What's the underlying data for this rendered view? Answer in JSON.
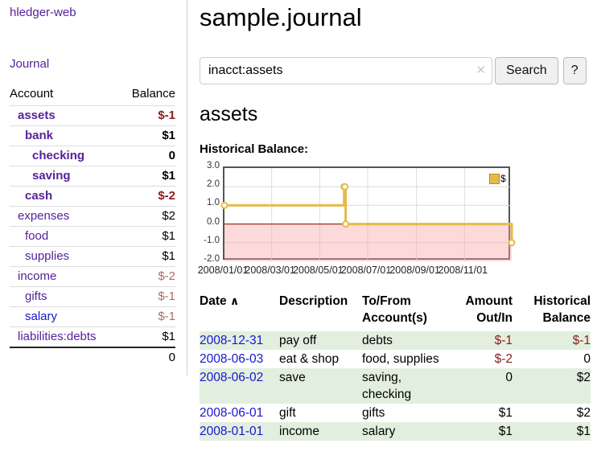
{
  "colors": {
    "purple": "#55229b",
    "link-blue": "#1717cf",
    "neg-strong": "#8c1c1c",
    "neg-muted": "#b06a6a",
    "row-green": "#e2efdf",
    "gold": "#e3bb4a",
    "gold-dark": "#b08c28",
    "grid": "#dddddd",
    "zero-line": "#8b0000",
    "neg-band": "#f7a8a8"
  },
  "app": {
    "brand": "hledger-web",
    "nav_journal": "Journal"
  },
  "sidebar": {
    "header": {
      "account": "Account",
      "balance": "Balance"
    },
    "rows": [
      {
        "name": "assets",
        "balance": "$-1",
        "name_color": "#55229b",
        "balance_color": "#8c1c1c"
      },
      {
        "name": "bank",
        "balance": "$1",
        "name_color": "#55229b",
        "balance_color": "#000000"
      },
      {
        "name": "checking",
        "balance": "0",
        "name_color": "#55229b",
        "balance_color": "#000000"
      },
      {
        "name": "saving",
        "balance": "$1",
        "name_color": "#55229b",
        "balance_color": "#000000"
      },
      {
        "name": "cash",
        "balance": "$-2",
        "name_color": "#55229b",
        "balance_color": "#8c1c1c"
      },
      {
        "name": "expenses",
        "balance": "$2",
        "name_color": "#55229b",
        "balance_color": "#000000"
      },
      {
        "name": "food",
        "balance": "$1",
        "name_color": "#55229b",
        "balance_color": "#000000"
      },
      {
        "name": "supplies",
        "balance": "$1",
        "name_color": "#55229b",
        "balance_color": "#000000"
      },
      {
        "name": "income",
        "balance": "$-2",
        "name_color": "#55229b",
        "balance_color": "#b06a6a"
      },
      {
        "name": "gifts",
        "balance": "$-1",
        "name_color": "#55229b",
        "balance_color": "#b06a6a"
      },
      {
        "name": "salary",
        "balance": "$-1",
        "name_color": "#1717cf",
        "balance_color": "#b06a6a"
      },
      {
        "name": "liabilities:debts",
        "balance": "$1",
        "name_color": "#55229b",
        "balance_color": "#000000"
      }
    ],
    "total": "0"
  },
  "header": {
    "title": "sample.journal"
  },
  "search": {
    "value": "inacct:assets",
    "clear_icon": "✕",
    "button_label": "Search",
    "help_label": "?"
  },
  "account_page": {
    "title": "assets",
    "chart_label": "Historical Balance:"
  },
  "chart_data": {
    "type": "line",
    "step": true,
    "series_name": "$",
    "x": [
      "2008-01-01",
      "2008-06-01",
      "2008-06-02",
      "2008-06-03",
      "2008-12-31"
    ],
    "values": [
      1,
      2,
      2,
      0,
      -1
    ],
    "x_range": [
      "2008-01-01",
      "2008-12-31"
    ],
    "ylim": [
      -2,
      3
    ],
    "ytick_labels": [
      "3.0",
      "2.0",
      "1.0",
      "0.0",
      "-1.0",
      "-2.0"
    ],
    "yticks": [
      3,
      2,
      1,
      0,
      -1,
      -2
    ],
    "xticks": [
      "2008-01-01",
      "2008-03-01",
      "2008-05-01",
      "2008-07-01",
      "2008-09-01",
      "2008-11-01"
    ],
    "xtick_labels": [
      "2008/01/01",
      "2008/03/01",
      "2008/05/01",
      "2008/07/01",
      "2008/09/01",
      "2008/11/01"
    ],
    "grid": true,
    "legend_position": "top-right",
    "line_color": "#e3bb4a",
    "negative_region": true
  },
  "register": {
    "columns": {
      "date": "Date",
      "sort_icon": "∧",
      "description": "Description",
      "tofrom": "To/From Account(s)",
      "amount": "Amount Out/In",
      "balance": "Historical Balance"
    },
    "rows": [
      {
        "date": "2008-12-31",
        "description": "pay off",
        "accounts": "debts",
        "amount": "$-1",
        "balance": "$-1",
        "amount_color": "#8c1c1c",
        "balance_color": "#8c1c1c"
      },
      {
        "date": "2008-06-03",
        "description": "eat & shop",
        "accounts": "food, supplies",
        "amount": "$-2",
        "balance": "0",
        "amount_color": "#8c1c1c",
        "balance_color": "#000000"
      },
      {
        "date": "2008-06-02",
        "description": "save",
        "accounts": "saving, checking",
        "amount": "0",
        "balance": "$2",
        "amount_color": "#000000",
        "balance_color": "#000000"
      },
      {
        "date": "2008-06-01",
        "description": "gift",
        "accounts": "gifts",
        "amount": "$1",
        "balance": "$2",
        "amount_color": "#000000",
        "balance_color": "#000000"
      },
      {
        "date": "2008-01-01",
        "description": "income",
        "accounts": "salary",
        "amount": "$1",
        "balance": "$1",
        "amount_color": "#000000",
        "balance_color": "#000000"
      }
    ]
  }
}
